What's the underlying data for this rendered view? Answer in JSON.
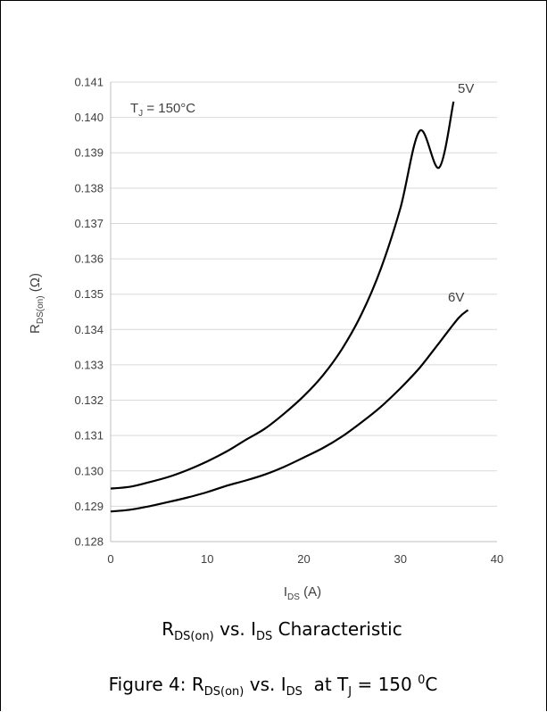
{
  "chart_data": {
    "type": "line",
    "annotation": {
      "main": "T",
      "sub": "J",
      "rest": " = 150°C"
    },
    "x_tick_labels": [
      "0",
      "10",
      "20",
      "30",
      "40"
    ],
    "y_tick_labels": [
      "0.128",
      "0.129",
      "0.130",
      "0.131",
      "0.132",
      "0.133",
      "0.134",
      "0.135",
      "0.136",
      "0.137",
      "0.138",
      "0.139",
      "0.140",
      "0.141"
    ],
    "xlim": [
      0,
      40
    ],
    "ylim": [
      0.128,
      0.141
    ],
    "grid": true,
    "xlabel": {
      "main": "I",
      "sub": "DS",
      "rest": " (A)"
    },
    "ylabel": {
      "main": "R",
      "sub": "DS(on)",
      "rest": " (Ω)"
    },
    "series": [
      {
        "name": "5V",
        "color": "#000000",
        "x": [
          0,
          2,
          4,
          6,
          8,
          10,
          12,
          14,
          16,
          18,
          20,
          22,
          24,
          26,
          28,
          30,
          32,
          34,
          35.5
        ],
        "y": [
          0.1295,
          0.12955,
          0.12968,
          0.12983,
          0.13003,
          0.13027,
          0.13055,
          0.13088,
          0.1312,
          0.13163,
          0.13212,
          0.13271,
          0.13347,
          0.13445,
          0.13574,
          0.13744,
          0.13962,
          0.13858,
          0.14045
        ]
      },
      {
        "name": "6V",
        "color": "#000000",
        "x": [
          0,
          2,
          4,
          6,
          8,
          10,
          12,
          14,
          16,
          18,
          20,
          22,
          24,
          26,
          28,
          30,
          32,
          34,
          36,
          37
        ],
        "y": [
          0.12885,
          0.1289,
          0.129,
          0.12912,
          0.12925,
          0.1294,
          0.12958,
          0.12973,
          0.1299,
          0.13012,
          0.13038,
          0.13065,
          0.13098,
          0.13138,
          0.13182,
          0.13234,
          0.13292,
          0.13362,
          0.13432,
          0.13455
        ]
      }
    ]
  },
  "caption": {
    "chart_title": {
      "r": "R",
      "r_sub": "DS(on)",
      "mid": " vs. I",
      "i_sub": "DS",
      "tail": " Characteristic"
    },
    "figure": {
      "lead": "Figure 4: R",
      "r_sub": "DS(on)",
      "mid": " vs. I",
      "i_sub": "DS",
      "at": "  at T",
      "t_sub": "J",
      "eq": " = 150 ",
      "deg": "0",
      "unit": "C"
    }
  }
}
